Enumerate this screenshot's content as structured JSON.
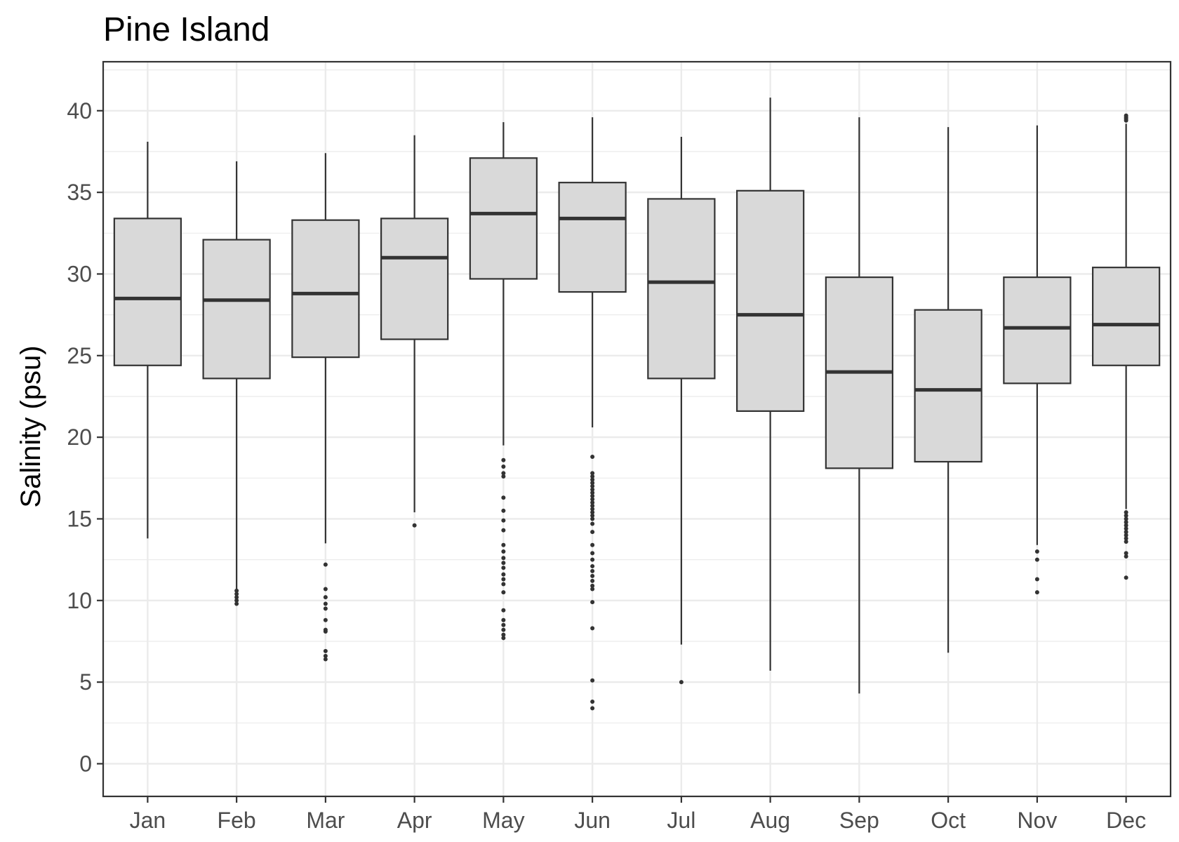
{
  "chart_data": {
    "type": "boxplot",
    "title": "Pine Island",
    "xlabel": "",
    "ylabel": "Salinity (psu)",
    "ylim": [
      -2,
      43
    ],
    "yticks": [
      0,
      5,
      10,
      15,
      20,
      25,
      30,
      35,
      40
    ],
    "grid": true,
    "colors": {
      "box_fill": "#d9d9d9",
      "stroke": "#333333",
      "grid": "#ebebeb",
      "panel_border": "#333333"
    },
    "categories": [
      "Jan",
      "Feb",
      "Mar",
      "Apr",
      "May",
      "Jun",
      "Jul",
      "Aug",
      "Sep",
      "Oct",
      "Nov",
      "Dec"
    ],
    "boxes": [
      {
        "month": "Jan",
        "whisker_low": 13.8,
        "q1": 24.4,
        "median": 28.5,
        "q3": 33.4,
        "whisker_high": 38.1,
        "outliers": []
      },
      {
        "month": "Feb",
        "whisker_low": 10.7,
        "q1": 23.6,
        "median": 28.4,
        "q3": 32.1,
        "whisker_high": 36.9,
        "outliers": [
          10.6,
          10.4,
          10.2,
          10.0,
          9.8
        ]
      },
      {
        "month": "Mar",
        "whisker_low": 13.5,
        "q1": 24.9,
        "median": 28.8,
        "q3": 33.3,
        "whisker_high": 37.4,
        "outliers": [
          12.2,
          10.7,
          10.2,
          9.8,
          9.5,
          8.8,
          8.2,
          8.1,
          6.9,
          6.6,
          6.4
        ]
      },
      {
        "month": "Apr",
        "whisker_low": 15.4,
        "q1": 26.0,
        "median": 31.0,
        "q3": 33.4,
        "whisker_high": 38.5,
        "outliers": [
          14.6
        ]
      },
      {
        "month": "May",
        "whisker_low": 19.5,
        "q1": 29.7,
        "median": 33.7,
        "q3": 37.1,
        "whisker_high": 39.3,
        "outliers": [
          18.6,
          18.2,
          17.8,
          17.6,
          16.3,
          15.5,
          14.9,
          14.3,
          13.4,
          13.0,
          12.6,
          12.3,
          12.0,
          11.6,
          11.3,
          11.0,
          10.5,
          9.4,
          8.8,
          8.5,
          8.2,
          7.9,
          7.7
        ]
      },
      {
        "month": "Jun",
        "whisker_low": 20.6,
        "q1": 28.9,
        "median": 33.4,
        "q3": 35.6,
        "whisker_high": 39.6,
        "outliers": [
          18.8,
          17.8,
          17.6,
          17.4,
          17.2,
          17.0,
          16.8,
          16.6,
          16.4,
          16.2,
          16.0,
          15.8,
          15.6,
          15.4,
          15.2,
          15.0,
          14.7,
          14.2,
          13.4,
          12.9,
          12.5,
          12.1,
          11.8,
          11.5,
          11.2,
          10.9,
          10.7,
          9.9,
          8.3,
          5.1,
          3.8,
          3.4
        ]
      },
      {
        "month": "Jul",
        "whisker_low": 7.3,
        "q1": 23.6,
        "median": 29.5,
        "q3": 34.6,
        "whisker_high": 38.4,
        "outliers": [
          5.0
        ]
      },
      {
        "month": "Aug",
        "whisker_low": 5.7,
        "q1": 21.6,
        "median": 27.5,
        "q3": 35.1,
        "whisker_high": 40.8,
        "outliers": []
      },
      {
        "month": "Sep",
        "whisker_low": 4.3,
        "q1": 18.1,
        "median": 24.0,
        "q3": 29.8,
        "whisker_high": 39.6,
        "outliers": []
      },
      {
        "month": "Oct",
        "whisker_low": 6.8,
        "q1": 18.5,
        "median": 22.9,
        "q3": 27.8,
        "whisker_high": 39.0,
        "outliers": []
      },
      {
        "month": "Nov",
        "whisker_low": 13.4,
        "q1": 23.3,
        "median": 26.7,
        "q3": 29.8,
        "whisker_high": 39.1,
        "outliers": [
          13.0,
          12.5,
          11.3,
          10.5
        ]
      },
      {
        "month": "Dec",
        "whisker_low": 15.6,
        "q1": 24.4,
        "median": 26.9,
        "q3": 30.4,
        "whisker_high": 39.2,
        "outliers": [
          39.4,
          39.5,
          39.6,
          39.7,
          15.4,
          15.2,
          15.0,
          14.8,
          14.6,
          14.4,
          14.2,
          14.0,
          13.8,
          13.6,
          12.9,
          12.7,
          11.4
        ]
      }
    ]
  }
}
